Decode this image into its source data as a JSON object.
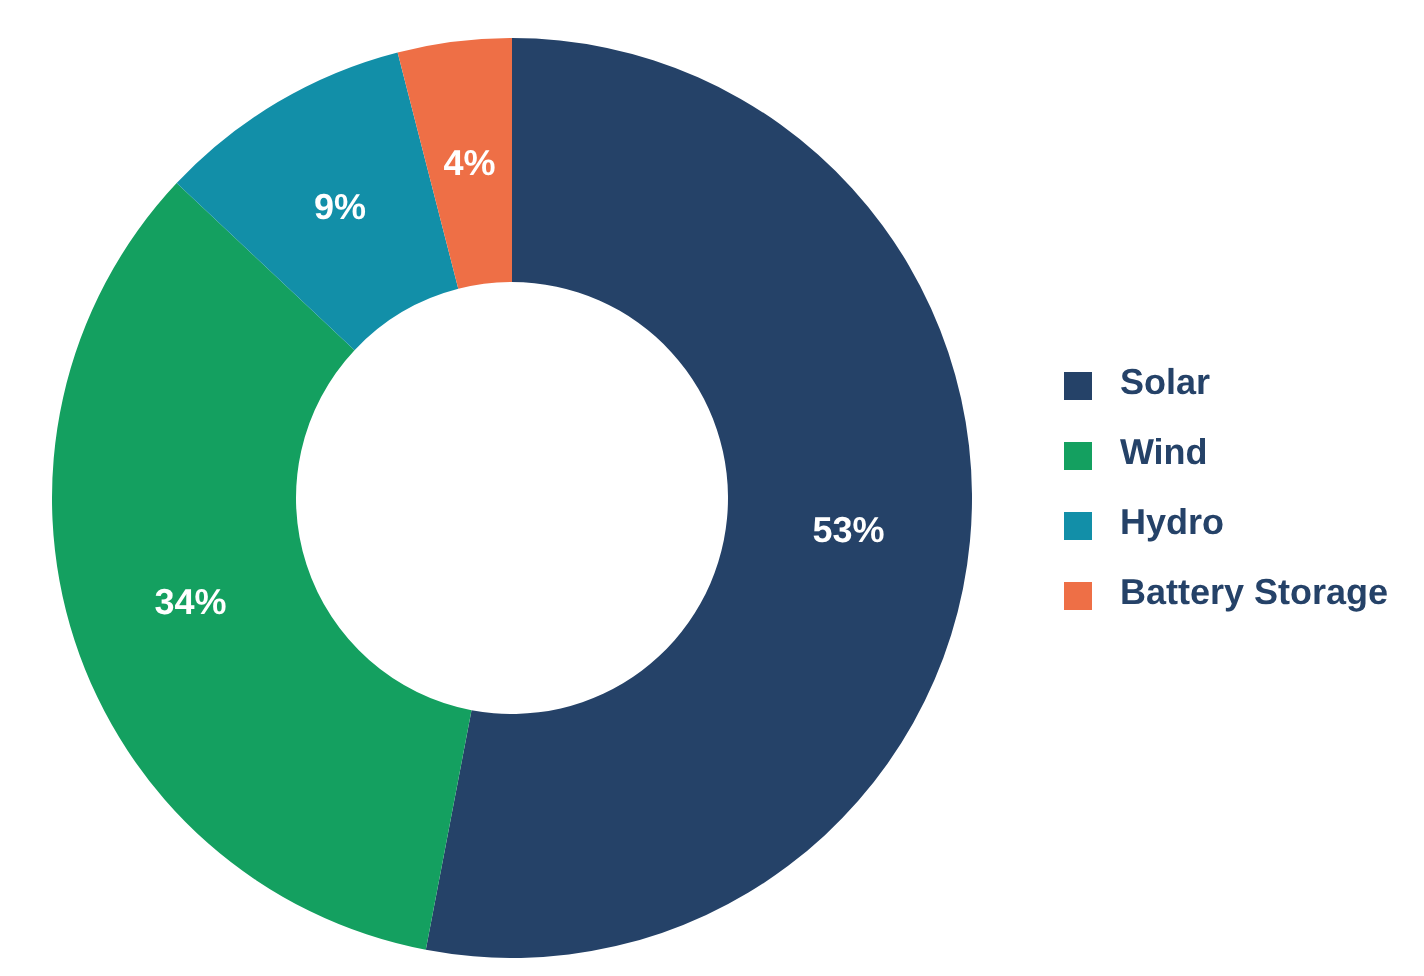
{
  "chart_data": {
    "type": "donut",
    "categories": [
      "Solar",
      "Wind",
      "Hydro",
      "Battery Storage"
    ],
    "values": [
      53,
      34,
      9,
      4
    ],
    "colors": [
      "#254268",
      "#14a060",
      "#128fa8",
      "#ee6f46"
    ],
    "value_labels": [
      "53%",
      "34%",
      "9%",
      "4%"
    ],
    "legend": "right"
  }
}
